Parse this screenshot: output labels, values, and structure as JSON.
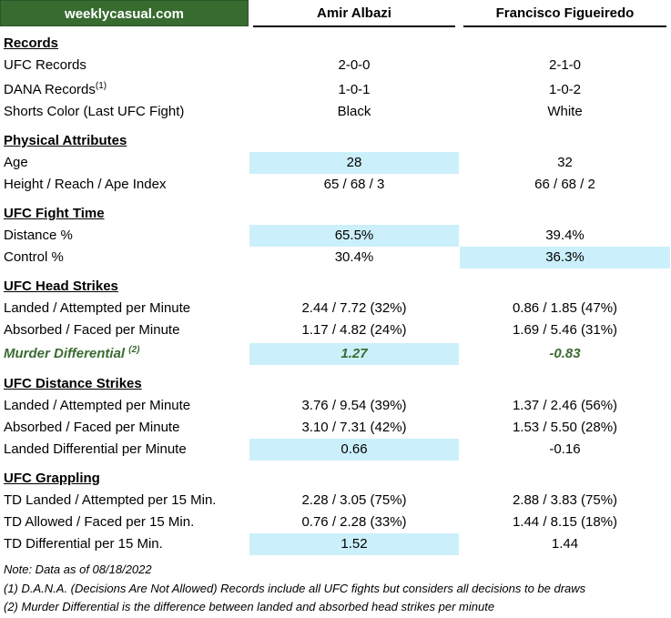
{
  "brand": "weeklycasual.com",
  "fighters": {
    "a": "Amir Albazi",
    "b": "Francisco Figueiredo"
  },
  "records": {
    "title": "Records",
    "ufc_label": "UFC Records",
    "ufc_a": "2-0-0",
    "ufc_b": "2-1-0",
    "dana_label": "DANA Records",
    "dana_sup": "(1)",
    "dana_a": "1-0-1",
    "dana_b": "1-0-2",
    "shorts_label": "Shorts Color (Last UFC Fight)",
    "shorts_a": "Black",
    "shorts_b": "White"
  },
  "physical": {
    "title": "Physical Attributes",
    "age_label": "Age",
    "age_a": "28",
    "age_b": "32",
    "hra_label": "Height / Reach / Ape Index",
    "hra_a": "65 / 68 / 3",
    "hra_b": "66 / 68 / 2"
  },
  "fight_time": {
    "title": "UFC Fight Time",
    "distance_label": "Distance %",
    "distance_a": "65.5%",
    "distance_b": "39.4%",
    "control_label": "Control %",
    "control_a": "30.4%",
    "control_b": "36.3%"
  },
  "head": {
    "title": "UFC Head Strikes",
    "landed_label": "Landed / Attempted per Minute",
    "landed_a": "2.44 / 7.72 (32%)",
    "landed_b": "0.86 / 1.85 (47%)",
    "absorbed_label": "Absorbed / Faced per Minute",
    "absorbed_a": "1.17 / 4.82 (24%)",
    "absorbed_b": "1.69 / 5.46 (31%)",
    "murder_label": "Murder Differential",
    "murder_sup": "(2)",
    "murder_a": "1.27",
    "murder_b": "-0.83"
  },
  "distance": {
    "title": "UFC Distance Strikes",
    "landed_label": "Landed / Attempted per Minute",
    "landed_a": "3.76 / 9.54 (39%)",
    "landed_b": "1.37 / 2.46 (56%)",
    "absorbed_label": "Absorbed / Faced per Minute",
    "absorbed_a": "3.10 / 7.31 (42%)",
    "absorbed_b": "1.53 / 5.50 (28%)",
    "diff_label": "Landed Differential per Minute",
    "diff_a": "0.66",
    "diff_b": "-0.16"
  },
  "grappling": {
    "title": "UFC Grappling",
    "td_landed_label": "TD Landed / Attempted per 15 Min.",
    "td_landed_a": "2.28 / 3.05 (75%)",
    "td_landed_b": "2.88 / 3.83 (75%)",
    "td_allowed_label": "TD Allowed / Faced per 15 Min.",
    "td_allowed_a": "0.76 / 2.28 (33%)",
    "td_allowed_b": "1.44 / 8.15 (18%)",
    "td_diff_label": "TD Differential per 15 Min.",
    "td_diff_a": "1.52",
    "td_diff_b": "1.44"
  },
  "notes": {
    "date": "Note: Data as of 08/18/2022",
    "note1": "(1) D.A.N.A. (Decisions Are Not Allowed) Records include all UFC fights but considers all decisions to be draws",
    "note2": "(2) Murder Differential is the difference between landed and absorbed head strikes per minute"
  },
  "colors": {
    "brand_bg": "#376b30",
    "highlight": "#ccf0fb",
    "murder_text": "#3a6b2f"
  }
}
